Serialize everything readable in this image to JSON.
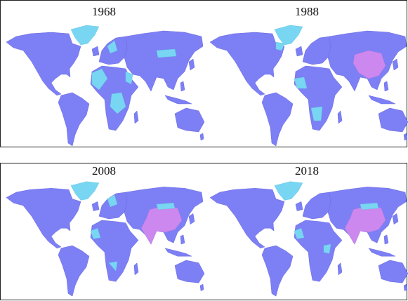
{
  "maps": [
    {
      "title": "1968"
    },
    {
      "title": "1988"
    },
    {
      "title": "2008"
    },
    {
      "title": "2018"
    }
  ]
}
